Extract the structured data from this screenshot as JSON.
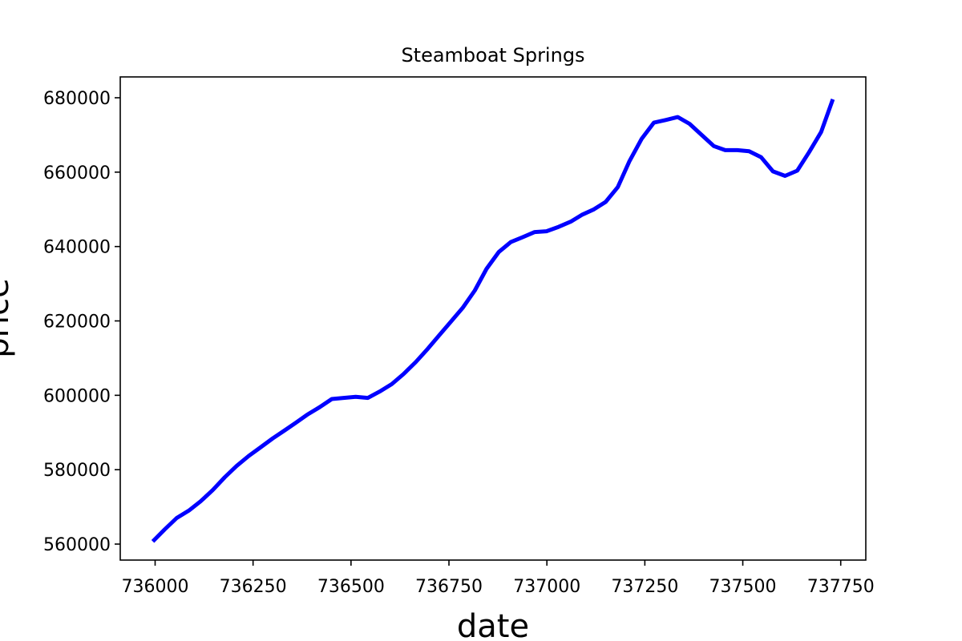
{
  "chart_data": {
    "type": "line",
    "title": "Steamboat Springs",
    "xlabel": "date",
    "ylabel": "price",
    "xlim": [
      735911,
      737814
    ],
    "ylim": [
      555700,
      685600
    ],
    "x_ticks": [
      736000,
      736250,
      736500,
      736750,
      737000,
      737250,
      737500,
      737750
    ],
    "y_ticks": [
      560000,
      580000,
      600000,
      620000,
      640000,
      660000,
      680000
    ],
    "x_tick_labels": [
      "736000",
      "736250",
      "736500",
      "736750",
      "737000",
      "737250",
      "737500",
      "737750"
    ],
    "y_tick_labels": [
      "560000",
      "580000",
      "600000",
      "620000",
      "640000",
      "660000",
      "680000"
    ],
    "grid": false,
    "series": [
      {
        "color": "#0000ff",
        "x": [
          735994,
          736025,
          736055,
          736086,
          736116,
          736147,
          736178,
          736208,
          736239,
          736269,
          736300,
          736331,
          736359,
          736390,
          736420,
          736451,
          736481,
          736512,
          736543,
          736573,
          736604,
          736634,
          736665,
          736696,
          736724,
          736755,
          736785,
          736816,
          736846,
          736877,
          736908,
          736938,
          736969,
          736999,
          737030,
          737061,
          737089,
          737120,
          737150,
          737181,
          737211,
          737242,
          737273,
          737303,
          737334,
          737364,
          737395,
          737426,
          737455,
          737486,
          737516,
          737547,
          737577,
          737608,
          737639,
          737669,
          737700,
          737730
        ],
        "y": [
          560700,
          564000,
          567000,
          569000,
          571500,
          574500,
          578000,
          581000,
          583700,
          586000,
          588400,
          590600,
          592600,
          594900,
          596800,
          599000,
          599300,
          599600,
          599300,
          601000,
          603000,
          605700,
          608900,
          612500,
          616000,
          619800,
          623500,
          628200,
          634000,
          638500,
          641200,
          642500,
          643900,
          644100,
          645300,
          646700,
          648500,
          650000,
          652000,
          656000,
          663000,
          669000,
          673300,
          674000,
          674800,
          673000,
          670000,
          667000,
          665900,
          665900,
          665600,
          664000,
          660200,
          659000,
          660400,
          665300,
          670800,
          679600
        ]
      }
    ]
  }
}
